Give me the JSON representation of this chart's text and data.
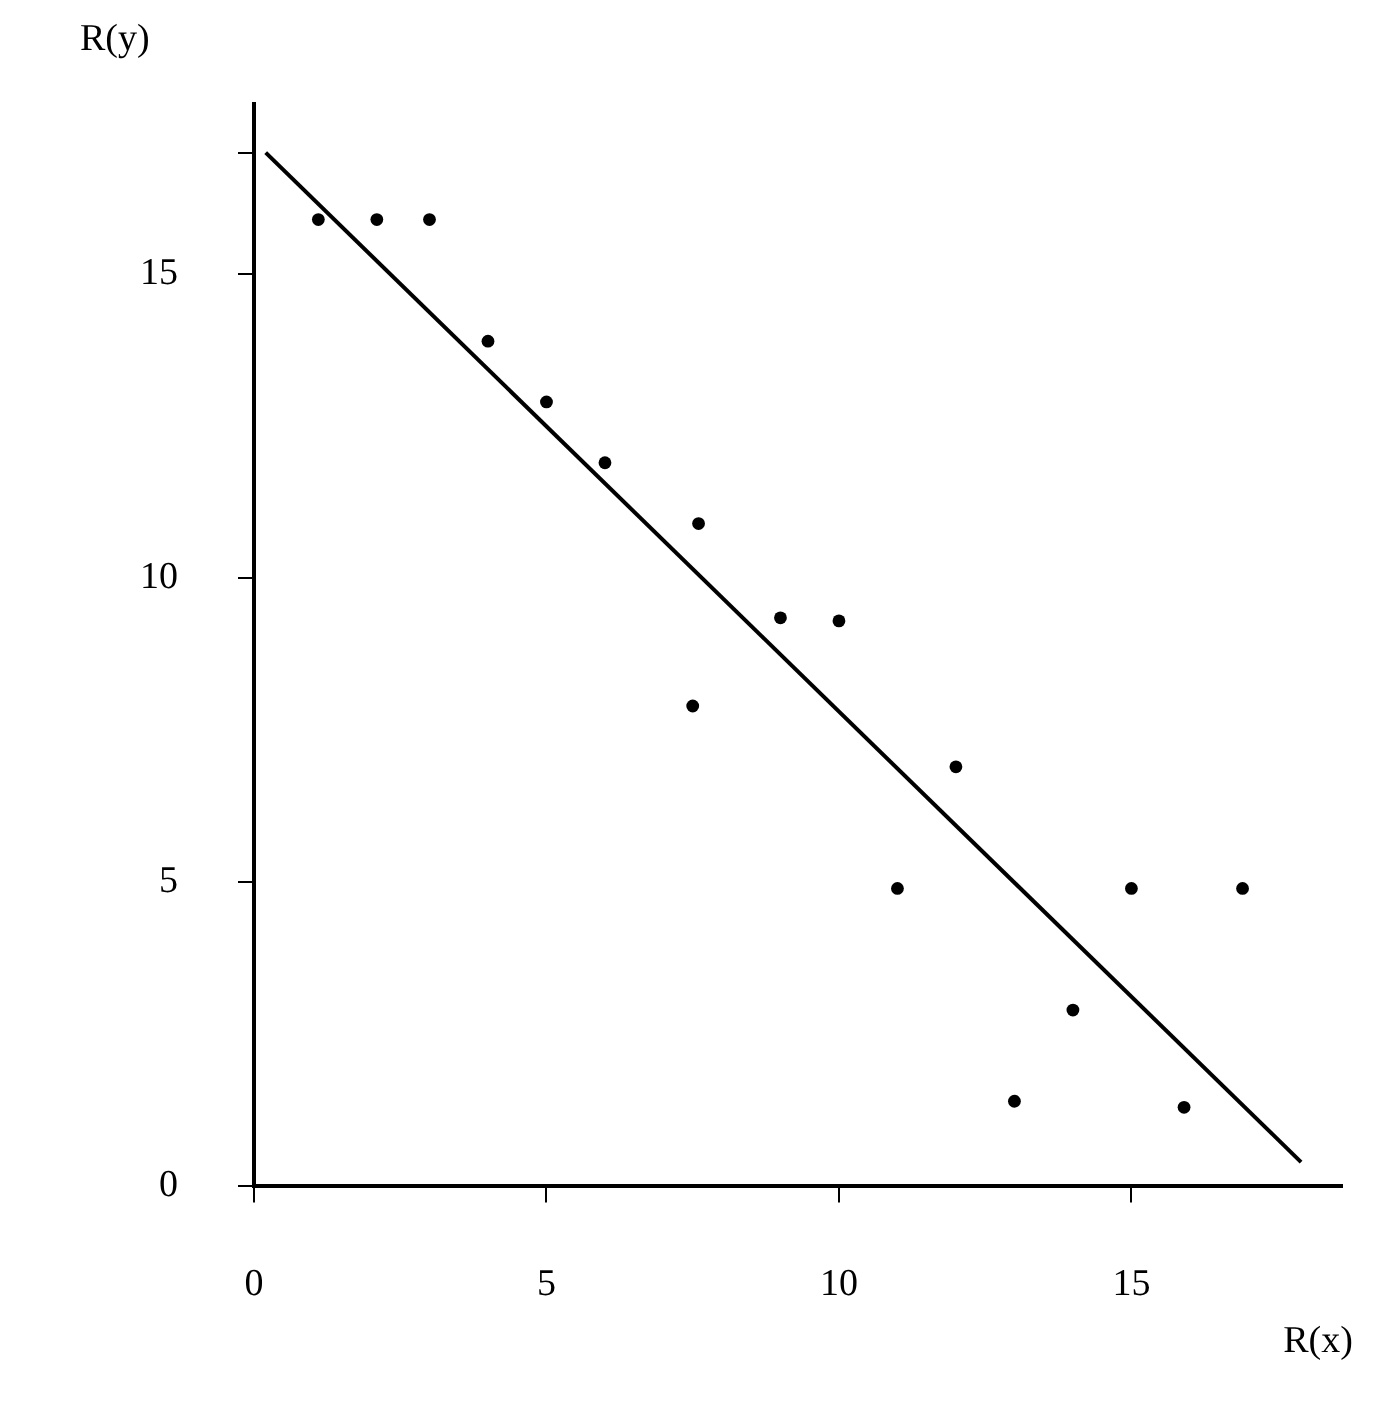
{
  "chart_data": {
    "type": "scatter",
    "xlabel": "R(x)",
    "ylabel": "R(y)",
    "xlim": [
      0,
      18.6
    ],
    "ylim": [
      0,
      17.8
    ],
    "xticks": [
      0,
      5,
      10,
      15
    ],
    "yticks": [
      0,
      5,
      10,
      15,
      {
        "value": 17,
        "label": null
      }
    ],
    "grid": false,
    "legend": false,
    "marker": "circle",
    "series": [
      {
        "color": "#000000",
        "x": [
          1.1,
          2.1,
          3.0,
          4.0,
          5.0,
          6.0,
          7.6,
          7.5,
          9.0,
          10.0,
          11.0,
          12.0,
          13.0,
          14.0,
          15.0,
          15.9,
          16.9
        ],
        "values": [
          15.9,
          15.9,
          15.9,
          13.9,
          12.9,
          11.9,
          10.9,
          7.9,
          9.35,
          9.3,
          4.9,
          6.9,
          1.4,
          2.9,
          4.9,
          1.3,
          4.9
        ]
      },
      {
        "type": "line",
        "marker": "none",
        "color": "#000000",
        "x": [
          0.2,
          17.9
        ],
        "values": [
          17.0,
          0.4
        ]
      }
    ]
  }
}
